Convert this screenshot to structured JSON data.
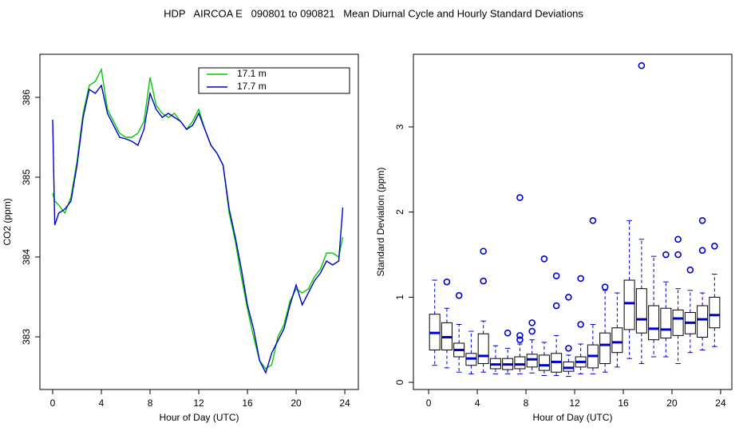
{
  "title": "HDP   AIRCOA E   090801 to 090821   Mean Diurnal Cycle and Hourly Standard Deviations",
  "chart_data": [
    {
      "type": "line",
      "xlabel": "Hour of Day (UTC)",
      "ylabel": "CO2 (ppm)",
      "xlim": [
        -1.05,
        25.11
      ],
      "ylim": [
        382.34,
        386.54
      ],
      "xticks": [
        0,
        4,
        8,
        12,
        16,
        20,
        24
      ],
      "yticks": [
        383,
        384,
        385,
        386
      ],
      "legend": "topright",
      "x": [
        0,
        0.17,
        0.5,
        1,
        1.5,
        2,
        2.5,
        3,
        3.5,
        4,
        4.5,
        5,
        5.5,
        6,
        6.5,
        7,
        7.5,
        8,
        8.5,
        9,
        9.5,
        10,
        10.5,
        11,
        11.5,
        12,
        12.5,
        13,
        13.5,
        14,
        14.5,
        15,
        15.5,
        16,
        16.5,
        17,
        17.5,
        18,
        18.5,
        19,
        19.5,
        20,
        20.5,
        21,
        21.5,
        22,
        22.5,
        23,
        23.5,
        23.83
      ],
      "series": [
        {
          "name": "17.1 m",
          "color": "#00cc00",
          "values": [
            384.8,
            384.7,
            384.65,
            384.55,
            384.75,
            385.2,
            385.8,
            386.15,
            386.2,
            386.35,
            385.85,
            385.7,
            385.55,
            385.5,
            385.5,
            385.55,
            385.7,
            386.25,
            385.9,
            385.8,
            385.75,
            385.8,
            385.7,
            385.6,
            385.7,
            385.85,
            385.6,
            385.4,
            385.3,
            385.15,
            384.55,
            384.2,
            383.75,
            383.35,
            383.0,
            382.7,
            382.6,
            382.65,
            383.0,
            383.15,
            383.45,
            383.6,
            383.55,
            383.6,
            383.75,
            383.85,
            384.05,
            384.05,
            384.0,
            384.25
          ]
        },
        {
          "name": "17.7 m",
          "color": "#0000cc",
          "values": [
            385.72,
            384.4,
            384.55,
            384.6,
            384.7,
            385.15,
            385.75,
            386.1,
            386.05,
            386.15,
            385.8,
            385.65,
            385.5,
            385.48,
            385.45,
            385.4,
            385.6,
            386.05,
            385.85,
            385.75,
            385.8,
            385.75,
            385.7,
            385.6,
            385.65,
            385.8,
            385.6,
            385.4,
            385.3,
            385.15,
            384.6,
            384.25,
            383.85,
            383.4,
            383.1,
            382.7,
            382.55,
            382.8,
            382.95,
            383.1,
            383.4,
            383.65,
            383.4,
            383.55,
            383.7,
            383.8,
            383.95,
            383.9,
            383.95,
            384.62
          ]
        }
      ]
    },
    {
      "type": "box",
      "xlabel": "Hour of Day (UTC)",
      "ylabel": "Standard Deviation (ppm)",
      "xlim": [
        -1.25,
        24.92
      ],
      "ylim": [
        -0.084,
        3.853
      ],
      "xticks": [
        0,
        4,
        8,
        12,
        16,
        20,
        24
      ],
      "yticks": [
        0,
        1,
        2,
        3
      ],
      "color": "#0000cc",
      "boxes": [
        {
          "x": 0.5,
          "median": 0.58,
          "q1": 0.38,
          "q3": 0.8,
          "whisker_low": 0.2,
          "whisker_high": 1.2,
          "outliers": []
        },
        {
          "x": 1.5,
          "median": 0.53,
          "q1": 0.38,
          "q3": 0.7,
          "whisker_low": 0.17,
          "whisker_high": 0.87,
          "outliers": [
            1.18
          ]
        },
        {
          "x": 2.5,
          "median": 0.38,
          "q1": 0.3,
          "q3": 0.46,
          "whisker_low": 0.12,
          "whisker_high": 0.68,
          "outliers": [
            1.02
          ]
        },
        {
          "x": 3.5,
          "median": 0.28,
          "q1": 0.2,
          "q3": 0.34,
          "whisker_low": 0.1,
          "whisker_high": 0.6,
          "outliers": []
        },
        {
          "x": 4.5,
          "median": 0.31,
          "q1": 0.22,
          "q3": 0.57,
          "whisker_low": 0.12,
          "whisker_high": 0.72,
          "outliers": [
            1.19,
            1.54
          ]
        },
        {
          "x": 5.5,
          "median": 0.21,
          "q1": 0.16,
          "q3": 0.28,
          "whisker_low": 0.1,
          "whisker_high": 0.43,
          "outliers": []
        },
        {
          "x": 6.5,
          "median": 0.21,
          "q1": 0.15,
          "q3": 0.28,
          "whisker_low": 0.1,
          "whisker_high": 0.4,
          "outliers": [
            0.58
          ]
        },
        {
          "x": 7.5,
          "median": 0.21,
          "q1": 0.16,
          "q3": 0.3,
          "whisker_low": 0.1,
          "whisker_high": 0.45,
          "outliers": [
            0.5,
            0.55,
            2.17
          ]
        },
        {
          "x": 8.5,
          "median": 0.27,
          "q1": 0.18,
          "q3": 0.33,
          "whisker_low": 0.11,
          "whisker_high": 0.5,
          "outliers": [
            0.6,
            0.7
          ]
        },
        {
          "x": 9.5,
          "median": 0.2,
          "q1": 0.14,
          "q3": 0.32,
          "whisker_low": 0.08,
          "whisker_high": 0.47,
          "outliers": [
            1.45
          ]
        },
        {
          "x": 10.5,
          "median": 0.24,
          "q1": 0.12,
          "q3": 0.34,
          "whisker_low": 0.08,
          "whisker_high": 0.55,
          "outliers": [
            0.9,
            1.25
          ]
        },
        {
          "x": 11.5,
          "median": 0.17,
          "q1": 0.13,
          "q3": 0.24,
          "whisker_low": 0.07,
          "whisker_high": 0.32,
          "outliers": [
            0.4,
            1.0
          ]
        },
        {
          "x": 12.5,
          "median": 0.24,
          "q1": 0.18,
          "q3": 0.3,
          "whisker_low": 0.1,
          "whisker_high": 0.45,
          "outliers": [
            0.68,
            1.22
          ]
        },
        {
          "x": 13.5,
          "median": 0.31,
          "q1": 0.17,
          "q3": 0.44,
          "whisker_low": 0.1,
          "whisker_high": 0.68,
          "outliers": [
            1.9
          ]
        },
        {
          "x": 14.5,
          "median": 0.44,
          "q1": 0.22,
          "q3": 0.58,
          "whisker_low": 0.12,
          "whisker_high": 1.08,
          "outliers": [
            1.12
          ]
        },
        {
          "x": 15.5,
          "median": 0.47,
          "q1": 0.35,
          "q3": 0.64,
          "whisker_low": 0.18,
          "whisker_high": 1.05,
          "outliers": []
        },
        {
          "x": 16.5,
          "median": 0.93,
          "q1": 0.62,
          "q3": 1.2,
          "whisker_low": 0.28,
          "whisker_high": 1.9,
          "outliers": []
        },
        {
          "x": 17.5,
          "median": 0.74,
          "q1": 0.58,
          "q3": 1.1,
          "whisker_low": 0.22,
          "whisker_high": 1.68,
          "outliers": [
            3.72
          ]
        },
        {
          "x": 18.5,
          "median": 0.63,
          "q1": 0.5,
          "q3": 0.9,
          "whisker_low": 0.3,
          "whisker_high": 1.48,
          "outliers": []
        },
        {
          "x": 19.5,
          "median": 0.62,
          "q1": 0.52,
          "q3": 0.87,
          "whisker_low": 0.3,
          "whisker_high": 1.18,
          "outliers": [
            1.5
          ]
        },
        {
          "x": 20.5,
          "median": 0.75,
          "q1": 0.55,
          "q3": 0.85,
          "whisker_low": 0.22,
          "whisker_high": 1.1,
          "outliers": [
            1.5,
            1.68
          ]
        },
        {
          "x": 21.5,
          "median": 0.7,
          "q1": 0.57,
          "q3": 0.82,
          "whisker_low": 0.35,
          "whisker_high": 1.08,
          "outliers": [
            1.32
          ]
        },
        {
          "x": 22.5,
          "median": 0.74,
          "q1": 0.53,
          "q3": 0.9,
          "whisker_low": 0.38,
          "whisker_high": 1.05,
          "outliers": [
            1.55,
            1.9
          ]
        },
        {
          "x": 23.5,
          "median": 0.79,
          "q1": 0.64,
          "q3": 1.0,
          "whisker_low": 0.42,
          "whisker_high": 1.27,
          "outliers": [
            1.6
          ]
        }
      ]
    }
  ]
}
